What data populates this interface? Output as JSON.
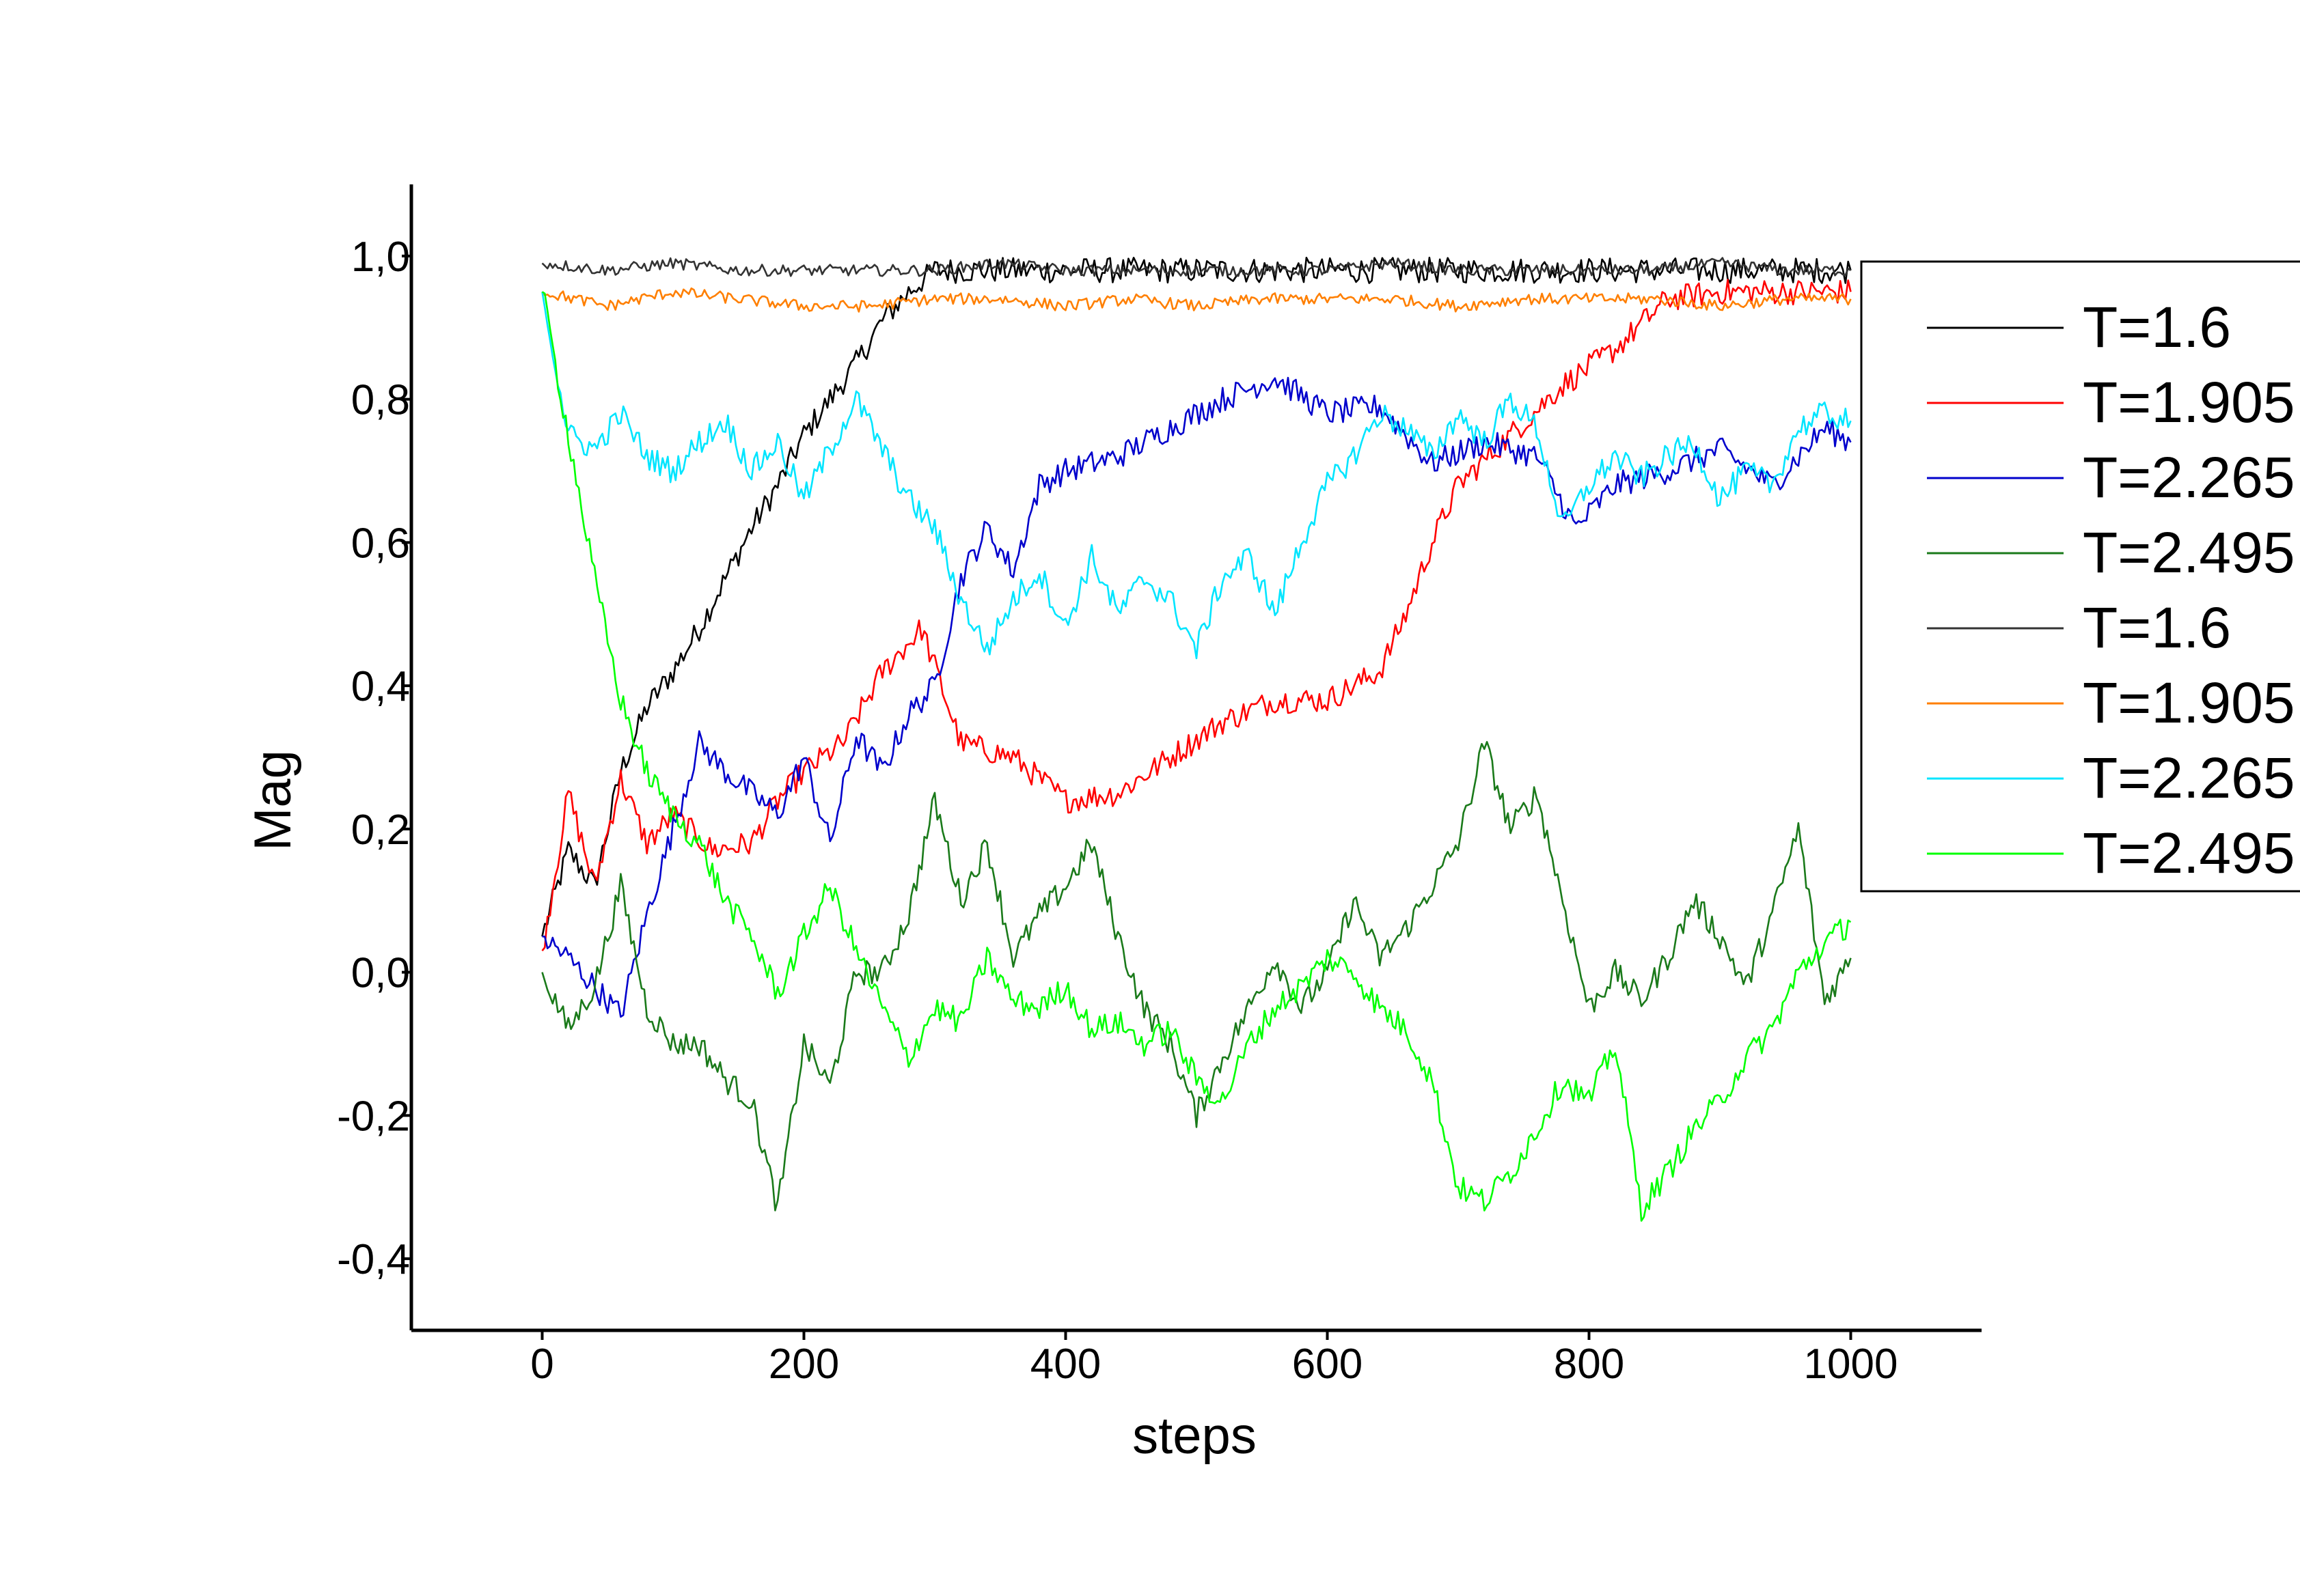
{
  "chart_data": {
    "type": "line",
    "title": "",
    "xlabel": "steps",
    "ylabel": "Mag",
    "xlim": [
      -100,
      1100
    ],
    "ylim": [
      -0.5,
      1.1
    ],
    "xticks": [
      0,
      200,
      400,
      600,
      800,
      1000
    ],
    "yticks": [
      -0.4,
      -0.2,
      0.0,
      0.2,
      0.4,
      0.6,
      0.8,
      1.0
    ],
    "xtick_labels": [
      "0",
      "200",
      "400",
      "600",
      "800",
      "1000"
    ],
    "ytick_labels": [
      "-0,4",
      "-0,2",
      "0,0",
      "0,2",
      "0,4",
      "0,6",
      "0,8",
      "1,0"
    ],
    "grid": false,
    "legend_position": "right",
    "series": [
      {
        "name": "T=1.6",
        "color": "#000000",
        "x": [
          0,
          20,
          40,
          60,
          80,
          100,
          120,
          140,
          160,
          180,
          200,
          220,
          240,
          260,
          280,
          300,
          400,
          500,
          600,
          700,
          800,
          900,
          1000
        ],
        "values": [
          0.05,
          0.17,
          0.12,
          0.28,
          0.37,
          0.42,
          0.48,
          0.55,
          0.62,
          0.68,
          0.75,
          0.8,
          0.85,
          0.91,
          0.95,
          0.98,
          0.98,
          0.98,
          0.98,
          0.98,
          0.98,
          0.98,
          0.98
        ]
      },
      {
        "name": "T=1.905",
        "color": "#ff0000",
        "x": [
          0,
          20,
          40,
          60,
          80,
          100,
          130,
          160,
          180,
          200,
          230,
          260,
          290,
          320,
          360,
          400,
          440,
          480,
          520,
          560,
          600,
          640,
          660,
          680,
          700,
          740,
          780,
          820,
          860,
          900,
          1000
        ],
        "values": [
          0.03,
          0.25,
          0.12,
          0.27,
          0.18,
          0.22,
          0.17,
          0.18,
          0.24,
          0.28,
          0.32,
          0.42,
          0.48,
          0.32,
          0.3,
          0.24,
          0.25,
          0.3,
          0.35,
          0.38,
          0.38,
          0.42,
          0.5,
          0.6,
          0.68,
          0.75,
          0.82,
          0.87,
          0.94,
          0.95,
          0.95
        ]
      },
      {
        "name": "T=2.265",
        "color": "#0000cc",
        "x": [
          0,
          20,
          40,
          60,
          80,
          100,
          120,
          140,
          160,
          180,
          200,
          220,
          240,
          260,
          280,
          300,
          320,
          340,
          360,
          380,
          400,
          440,
          480,
          520,
          560,
          600,
          640,
          680,
          720,
          760,
          790,
          820,
          860,
          900,
          940,
          980,
          1000
        ],
        "values": [
          0.05,
          0.02,
          -0.02,
          -0.06,
          0.08,
          0.2,
          0.32,
          0.28,
          0.25,
          0.22,
          0.3,
          0.18,
          0.33,
          0.28,
          0.36,
          0.4,
          0.55,
          0.62,
          0.56,
          0.68,
          0.7,
          0.72,
          0.76,
          0.8,
          0.83,
          0.78,
          0.79,
          0.71,
          0.74,
          0.72,
          0.62,
          0.68,
          0.7,
          0.73,
          0.68,
          0.76,
          0.74
        ]
      },
      {
        "name": "T=2.495",
        "color": "#1a7a1a",
        "x": [
          0,
          20,
          40,
          60,
          80,
          100,
          120,
          140,
          160,
          180,
          200,
          220,
          240,
          260,
          280,
          300,
          320,
          340,
          360,
          380,
          400,
          420,
          440,
          460,
          480,
          500,
          520,
          540,
          560,
          580,
          600,
          620,
          640,
          660,
          680,
          700,
          720,
          740,
          760,
          780,
          800,
          820,
          840,
          860,
          880,
          900,
          920,
          940,
          960,
          980,
          1000
        ],
        "values": [
          0.0,
          -0.08,
          -0.02,
          0.12,
          -0.05,
          -0.1,
          -0.1,
          -0.15,
          -0.18,
          -0.33,
          -0.1,
          -0.16,
          0.0,
          0.0,
          0.08,
          0.24,
          0.1,
          0.18,
          0.02,
          0.08,
          0.12,
          0.18,
          0.05,
          -0.05,
          -0.1,
          -0.2,
          -0.12,
          -0.05,
          0.02,
          -0.05,
          0.0,
          0.1,
          0.02,
          0.06,
          0.12,
          0.18,
          0.32,
          0.2,
          0.25,
          0.1,
          -0.05,
          0.0,
          -0.04,
          0.02,
          0.1,
          0.05,
          -0.02,
          0.08,
          0.2,
          -0.04,
          0.02
        ]
      },
      {
        "name": "T=1.6",
        "color": "#333333",
        "x": [
          0,
          50,
          100,
          150,
          200,
          250,
          300,
          350,
          400,
          450,
          500,
          550,
          600,
          650,
          700,
          750,
          800,
          850,
          900,
          950,
          1000
        ],
        "values": [
          0.99,
          0.98,
          0.99,
          0.98,
          0.98,
          0.98,
          0.98,
          0.99,
          0.98,
          0.98,
          0.98,
          0.98,
          0.98,
          0.99,
          0.98,
          0.98,
          0.98,
          0.98,
          0.99,
          0.98,
          0.98
        ]
      },
      {
        "name": "T=1.905",
        "color": "#ff7f00",
        "x": [
          0,
          50,
          100,
          150,
          200,
          250,
          300,
          350,
          400,
          450,
          500,
          550,
          600,
          650,
          700,
          750,
          800,
          850,
          900,
          950,
          1000
        ],
        "values": [
          0.95,
          0.93,
          0.95,
          0.94,
          0.93,
          0.93,
          0.94,
          0.94,
          0.93,
          0.94,
          0.93,
          0.94,
          0.94,
          0.94,
          0.93,
          0.94,
          0.94,
          0.94,
          0.93,
          0.94,
          0.94
        ]
      },
      {
        "name": "T=2.265",
        "color": "#00e5ff",
        "x": [
          0,
          20,
          40,
          60,
          80,
          100,
          120,
          140,
          160,
          180,
          200,
          220,
          240,
          260,
          280,
          300,
          320,
          340,
          360,
          380,
          400,
          420,
          440,
          460,
          480,
          500,
          520,
          540,
          560,
          580,
          600,
          620,
          640,
          660,
          680,
          700,
          720,
          740,
          760,
          780,
          800,
          820,
          840,
          860,
          880,
          900,
          920,
          940,
          960,
          980,
          1000
        ],
        "values": [
          0.95,
          0.75,
          0.73,
          0.78,
          0.72,
          0.7,
          0.74,
          0.77,
          0.7,
          0.74,
          0.66,
          0.73,
          0.8,
          0.73,
          0.66,
          0.62,
          0.52,
          0.45,
          0.52,
          0.56,
          0.48,
          0.58,
          0.5,
          0.55,
          0.52,
          0.45,
          0.55,
          0.58,
          0.5,
          0.6,
          0.68,
          0.72,
          0.78,
          0.76,
          0.72,
          0.78,
          0.74,
          0.8,
          0.76,
          0.62,
          0.68,
          0.72,
          0.69,
          0.72,
          0.74,
          0.66,
          0.7,
          0.68,
          0.76,
          0.78,
          0.77
        ]
      },
      {
        "name": "T=2.495",
        "color": "#00ff00",
        "x": [
          0,
          20,
          40,
          60,
          80,
          100,
          120,
          140,
          160,
          180,
          200,
          220,
          240,
          260,
          280,
          300,
          320,
          340,
          360,
          380,
          400,
          420,
          440,
          460,
          480,
          500,
          520,
          540,
          560,
          580,
          600,
          620,
          640,
          660,
          680,
          700,
          720,
          740,
          760,
          780,
          800,
          820,
          840,
          860,
          880,
          900,
          920,
          940,
          960,
          980,
          1000
        ],
        "values": [
          0.95,
          0.75,
          0.55,
          0.38,
          0.28,
          0.22,
          0.18,
          0.1,
          0.05,
          -0.03,
          0.05,
          0.12,
          0.03,
          -0.05,
          -0.12,
          -0.05,
          -0.07,
          0.02,
          -0.04,
          -0.05,
          -0.02,
          -0.08,
          -0.07,
          -0.1,
          -0.08,
          -0.15,
          -0.18,
          -0.1,
          -0.05,
          -0.02,
          0.02,
          0.0,
          -0.05,
          -0.08,
          -0.15,
          -0.3,
          -0.32,
          -0.28,
          -0.22,
          -0.15,
          -0.18,
          -0.1,
          -0.33,
          -0.28,
          -0.22,
          -0.18,
          -0.12,
          -0.08,
          0.0,
          0.04,
          0.07
        ]
      }
    ]
  }
}
